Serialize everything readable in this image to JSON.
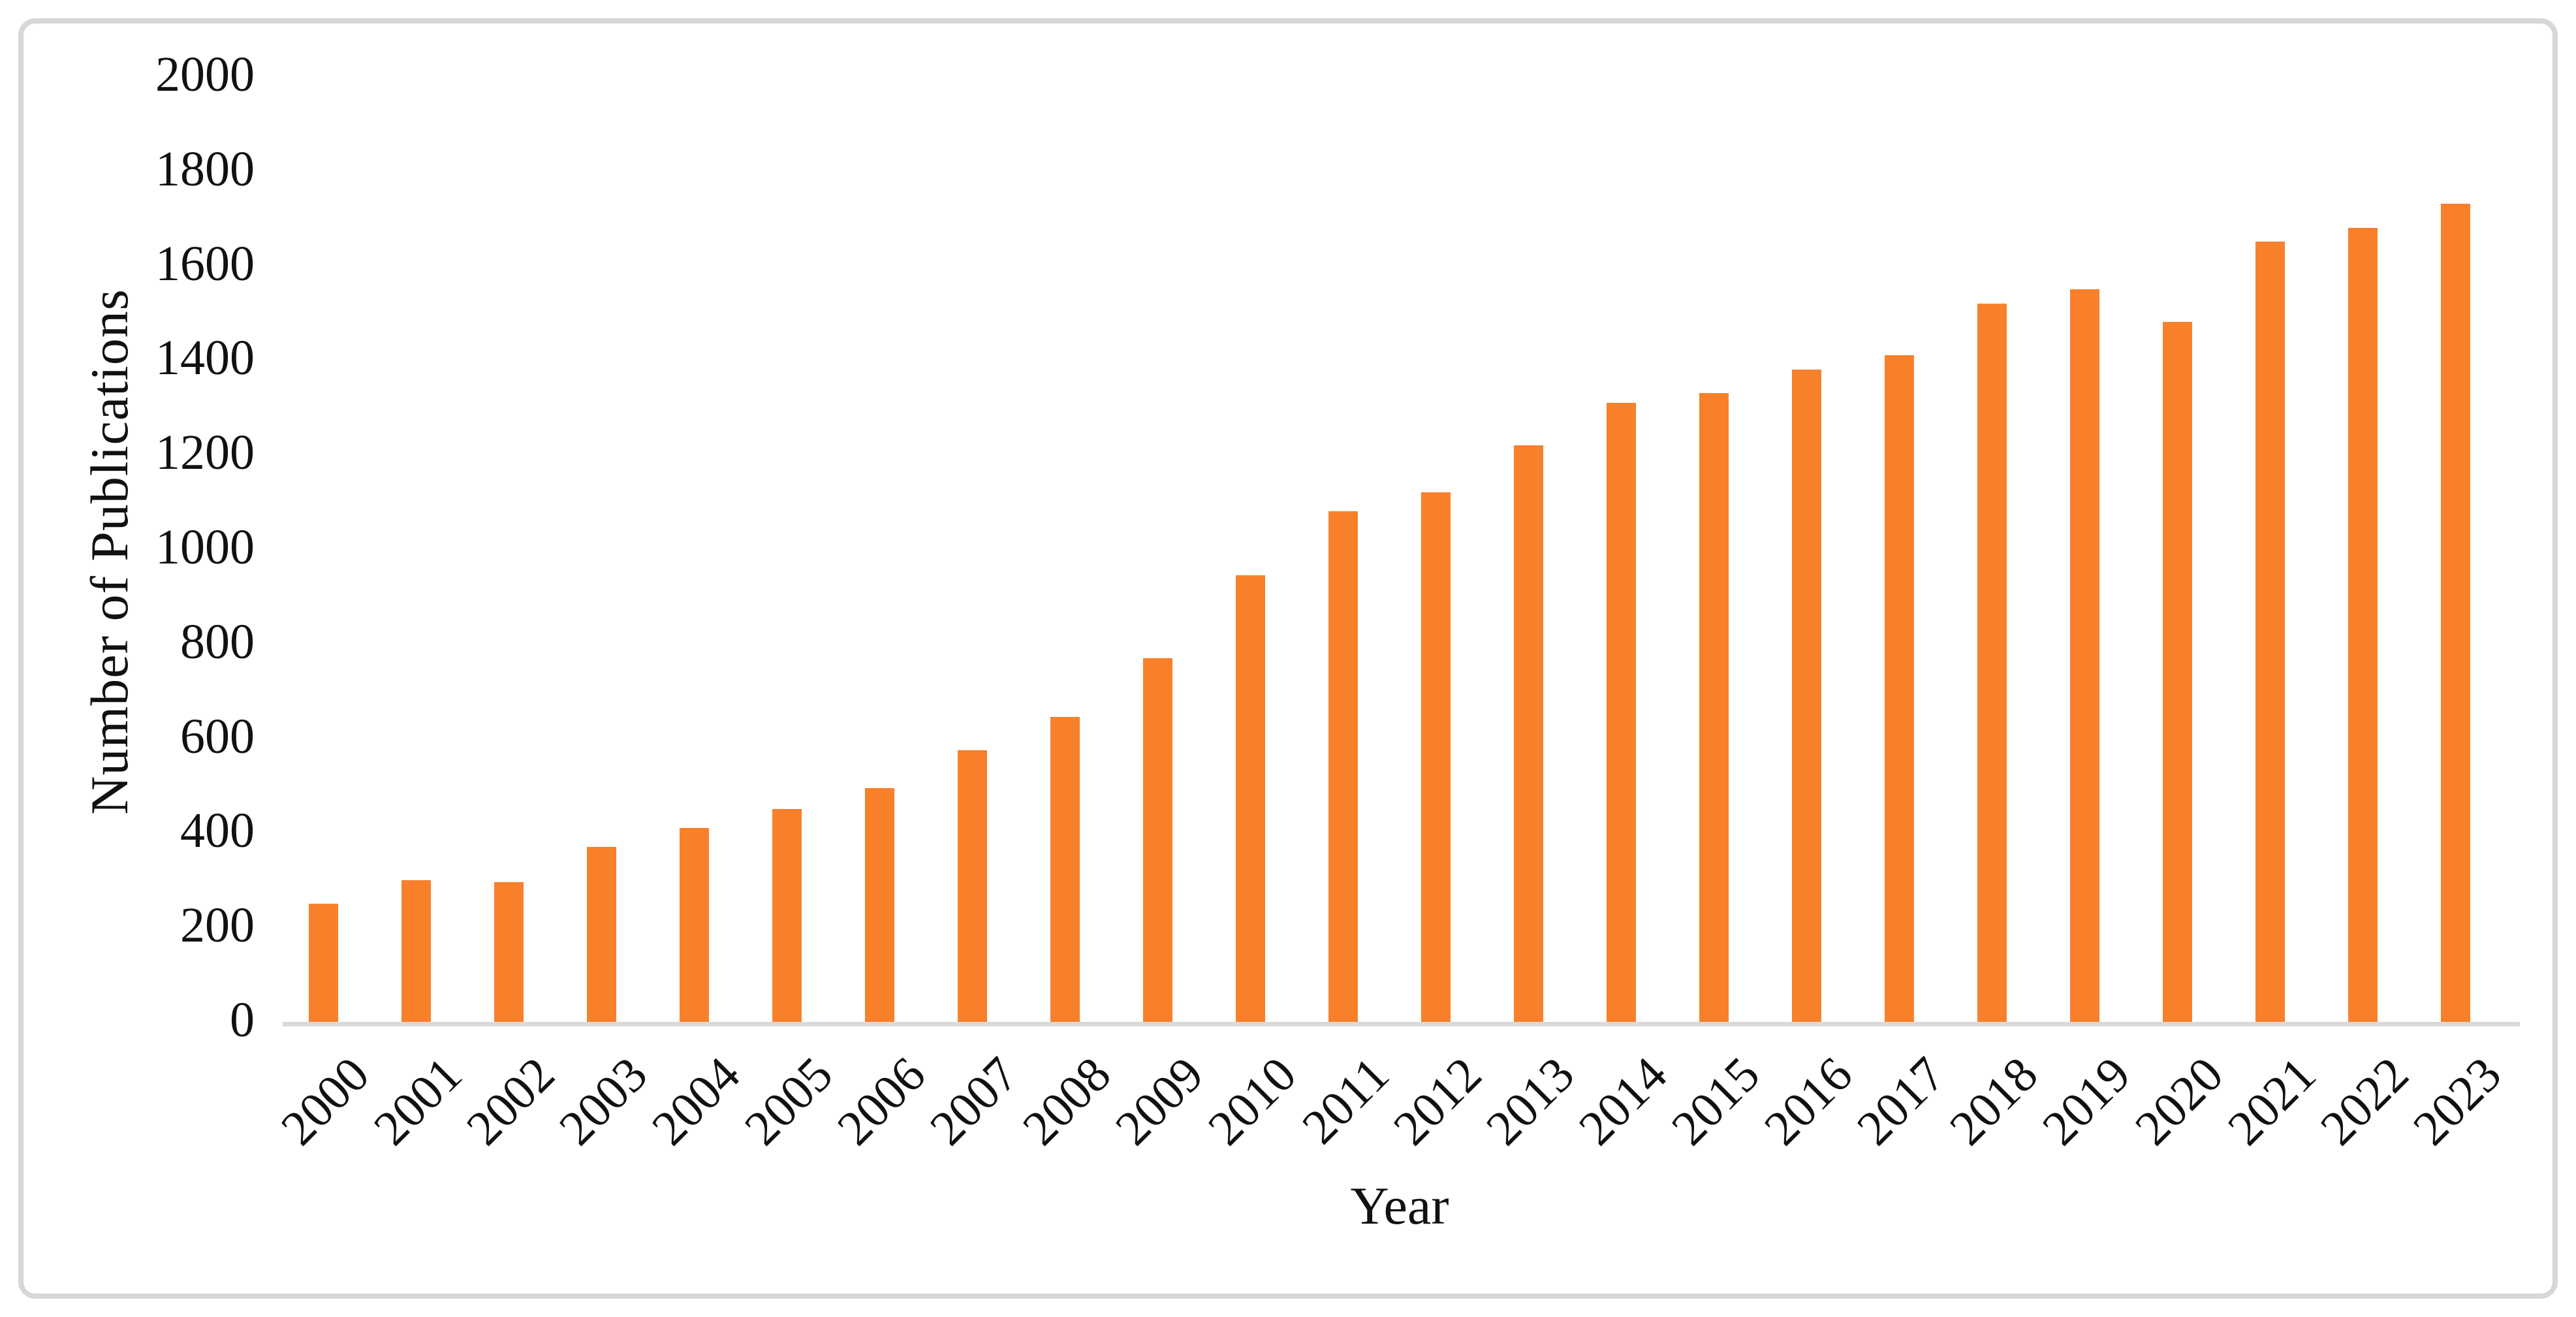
{
  "figure": {
    "border_color": "#d7d7d7",
    "background": "#ffffff"
  },
  "chart_data": {
    "type": "bar",
    "title": "",
    "xlabel": "Year",
    "ylabel": "Number of Publications",
    "categories": [
      "2000",
      "2001",
      "2002",
      "2003",
      "2004",
      "2005",
      "2006",
      "2007",
      "2008",
      "2009",
      "2010",
      "2011",
      "2012",
      "2013",
      "2014",
      "2015",
      "2016",
      "2017",
      "2018",
      "2019",
      "2020",
      "2021",
      "2022",
      "2023"
    ],
    "values": [
      250,
      300,
      295,
      370,
      410,
      450,
      495,
      575,
      645,
      770,
      945,
      1080,
      1120,
      1220,
      1310,
      1330,
      1380,
      1410,
      1520,
      1550,
      1480,
      1650,
      1680,
      1730
    ],
    "ylim": [
      0,
      2000
    ],
    "ytick_interval": 200,
    "yticks": [
      0,
      200,
      400,
      600,
      800,
      1000,
      1200,
      1400,
      1600,
      1800,
      2000
    ],
    "bar_color": "#f8802b",
    "axis_line_color": "#d9d9d9",
    "text_color": "#111111",
    "grid": false,
    "legend": "none",
    "x_tick_rotation": -45
  }
}
